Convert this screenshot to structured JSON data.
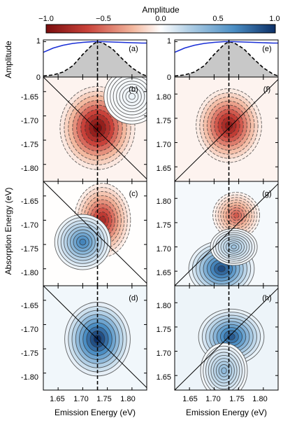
{
  "figure": {
    "colorbar": {
      "label": "Amplitude",
      "ticks": [
        "−1.0",
        "−0.5",
        "0.0",
        "0.5",
        "1.0"
      ],
      "range": [
        -1,
        1
      ],
      "colors": [
        "#7a0d0d",
        "#c9423a",
        "#f3b89f",
        "#ffffff",
        "#b3d0e6",
        "#4b8ec4",
        "#0c2f66"
      ]
    },
    "shared": {
      "ylabel_top": "Amplitude",
      "ylabel_main": "Absorption Energy (eV)",
      "xlabel": "Emission Energy (eV)",
      "x_ticks": [
        "1.65",
        "1.70",
        "1.75",
        "1.80"
      ],
      "spectrum_yticks": [
        "0",
        "1"
      ]
    },
    "left_yticks": [
      "-1.65",
      "-1.70",
      "-1.75",
      "-1.80"
    ],
    "right_yticks": [
      "1.80",
      "1.75",
      "1.70",
      "1.65"
    ],
    "panel_labels": [
      "(a)",
      "(b)",
      "(c)",
      "(d)",
      "(e)",
      "(f)",
      "(g)",
      "(h)"
    ]
  },
  "chart_data": [
    {
      "type": "area",
      "panel": "(a)",
      "xlim": [
        1.62,
        1.83
      ],
      "ylim": [
        0,
        1.05
      ],
      "series": [
        {
          "kind": "filled-dashed",
          "x": [
            1.62,
            1.64,
            1.66,
            1.68,
            1.7,
            1.72,
            1.73,
            1.74,
            1.76,
            1.78,
            1.8,
            1.82,
            1.83
          ],
          "y": [
            0.03,
            0.06,
            0.14,
            0.32,
            0.64,
            0.92,
            1.0,
            0.97,
            0.8,
            0.52,
            0.26,
            0.08,
            0.03
          ]
        },
        {
          "kind": "line",
          "x": [
            1.62,
            1.64,
            1.66,
            1.68,
            1.7,
            1.72,
            1.74,
            1.76,
            1.78,
            1.8,
            1.82,
            1.83
          ],
          "y": [
            0.7,
            0.82,
            0.9,
            0.95,
            0.98,
            1.0,
            1.0,
            0.99,
            0.98,
            0.97,
            0.96,
            0.96
          ]
        }
      ],
      "marker_x": 1.73
    },
    {
      "type": "area",
      "panel": "(e)",
      "xlim": [
        1.62,
        1.83
      ],
      "ylim": [
        0,
        1.05
      ],
      "series": [
        {
          "kind": "filled-dashed",
          "x": [
            1.62,
            1.64,
            1.66,
            1.68,
            1.7,
            1.72,
            1.73,
            1.74,
            1.76,
            1.78,
            1.8,
            1.82,
            1.83
          ],
          "y": [
            0.03,
            0.06,
            0.14,
            0.32,
            0.64,
            0.92,
            1.0,
            0.97,
            0.8,
            0.52,
            0.26,
            0.08,
            0.03
          ]
        },
        {
          "kind": "line",
          "x": [
            1.62,
            1.64,
            1.66,
            1.68,
            1.7,
            1.72,
            1.74,
            1.76,
            1.78,
            1.8,
            1.82,
            1.83
          ],
          "y": [
            0.7,
            0.82,
            0.9,
            0.95,
            0.98,
            1.0,
            1.0,
            0.99,
            0.98,
            0.97,
            0.96,
            0.96
          ]
        }
      ],
      "marker_x": 1.73
    },
    {
      "type": "heatmap",
      "panel": "(b)",
      "xlim": [
        1.62,
        1.83
      ],
      "ylim": [
        -1.835,
        -1.62
      ],
      "diagonal": "anti",
      "marker_x": 1.73,
      "blobs": [
        {
          "x": 1.73,
          "y": -1.725,
          "amp": -1.0,
          "sx": 0.04,
          "sy": 0.045
        },
        {
          "x": 1.8,
          "y": -1.66,
          "amp": 0.08,
          "sx": 0.03,
          "sy": 0.03
        }
      ]
    },
    {
      "type": "heatmap",
      "panel": "(c)",
      "xlim": [
        1.62,
        1.83
      ],
      "ylim": [
        -1.835,
        -1.62
      ],
      "diagonal": "anti",
      "marker_x": 1.73,
      "blobs": [
        {
          "x": 1.74,
          "y": -1.7,
          "amp": -0.8,
          "sx": 0.03,
          "sy": 0.04
        },
        {
          "x": 1.7,
          "y": -1.745,
          "amp": 0.7,
          "sx": 0.03,
          "sy": 0.03
        }
      ]
    },
    {
      "type": "heatmap",
      "panel": "(d)",
      "xlim": [
        1.62,
        1.83
      ],
      "ylim": [
        -1.835,
        -1.62
      ],
      "diagonal": "anti",
      "marker_x": 1.73,
      "blobs": [
        {
          "x": 1.73,
          "y": -1.73,
          "amp": 1.0,
          "sx": 0.035,
          "sy": 0.04
        }
      ]
    },
    {
      "type": "heatmap",
      "panel": "(f)",
      "xlim": [
        1.62,
        1.83
      ],
      "ylim": [
        1.62,
        1.835
      ],
      "diagonal": "main",
      "marker_x": 1.73,
      "blobs": [
        {
          "x": 1.73,
          "y": 1.735,
          "amp": -0.9,
          "sx": 0.035,
          "sy": 0.04
        }
      ]
    },
    {
      "type": "heatmap",
      "panel": "(g)",
      "xlim": [
        1.62,
        1.83
      ],
      "ylim": [
        1.62,
        1.835
      ],
      "diagonal": "main",
      "marker_x": 1.73,
      "blobs": [
        {
          "x": 1.745,
          "y": 1.765,
          "amp": -0.6,
          "sx": 0.025,
          "sy": 0.025
        },
        {
          "x": 1.715,
          "y": 1.655,
          "amp": 0.9,
          "sx": 0.035,
          "sy": 0.03
        },
        {
          "x": 1.74,
          "y": 1.7,
          "amp": 0.4,
          "sx": 0.025,
          "sy": 0.02
        }
      ]
    },
    {
      "type": "heatmap",
      "panel": "(h)",
      "xlim": [
        1.62,
        1.83
      ],
      "ylim": [
        1.62,
        1.835
      ],
      "diagonal": "main",
      "marker_x": 1.73,
      "blobs": [
        {
          "x": 1.735,
          "y": 1.73,
          "amp": 0.85,
          "sx": 0.035,
          "sy": 0.03
        },
        {
          "x": 1.72,
          "y": 1.66,
          "amp": 0.45,
          "sx": 0.025,
          "sy": 0.03
        }
      ]
    }
  ]
}
